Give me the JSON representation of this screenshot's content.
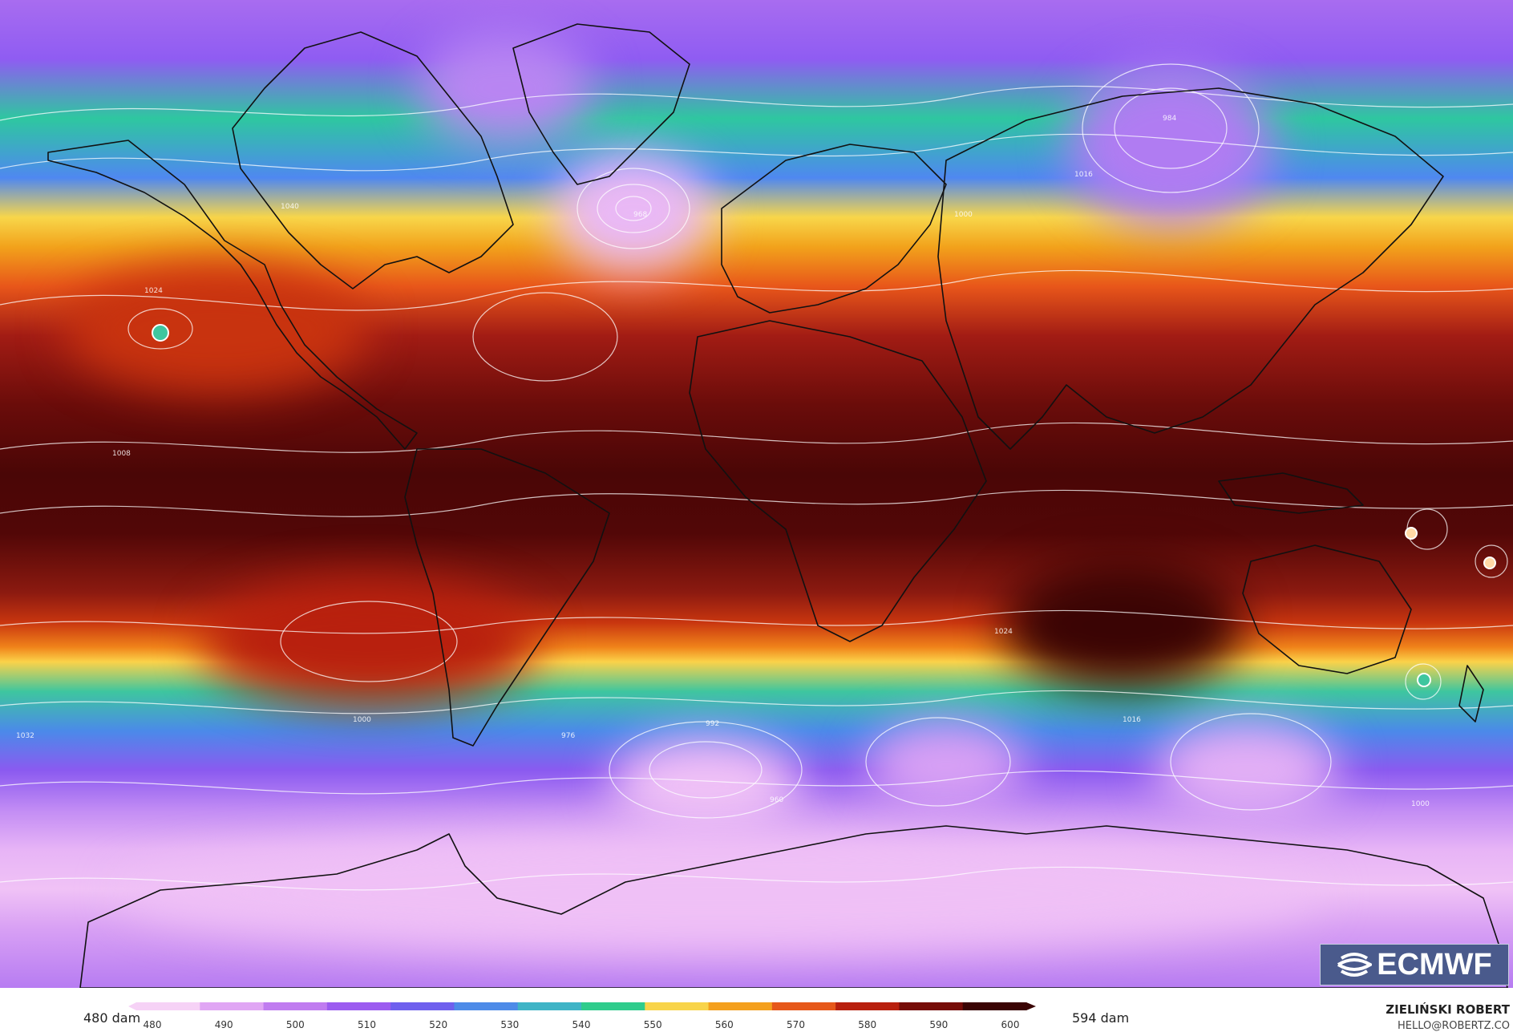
{
  "map": {
    "field": "500 hPa geopotential height with mean sea level pressure isobars",
    "isobar_labels": [
      "1016",
      "1024",
      "1008",
      "1000",
      "992",
      "984",
      "976",
      "968",
      "960",
      "1032",
      "1040"
    ]
  },
  "logo": {
    "text": "ECMWF"
  },
  "colorbar": {
    "min_label": "480 dam",
    "max_label": "594 dam",
    "ticks": [
      "480",
      "490",
      "500",
      "510",
      "520",
      "530",
      "540",
      "550",
      "560",
      "570",
      "580",
      "590",
      "600"
    ],
    "colors": [
      "#f6d2f6",
      "#e0a6f4",
      "#c07cf0",
      "#9c5cf0",
      "#6f60ee",
      "#4d8be8",
      "#3fb4c6",
      "#2fcc8c",
      "#f8d44a",
      "#f4a01e",
      "#e6581a",
      "#b8200e",
      "#760c08",
      "#3a0404"
    ]
  },
  "author": {
    "name": "ZIELIŃSKI ROBERT",
    "email": "HELLO@ROBERTZ.CO"
  }
}
